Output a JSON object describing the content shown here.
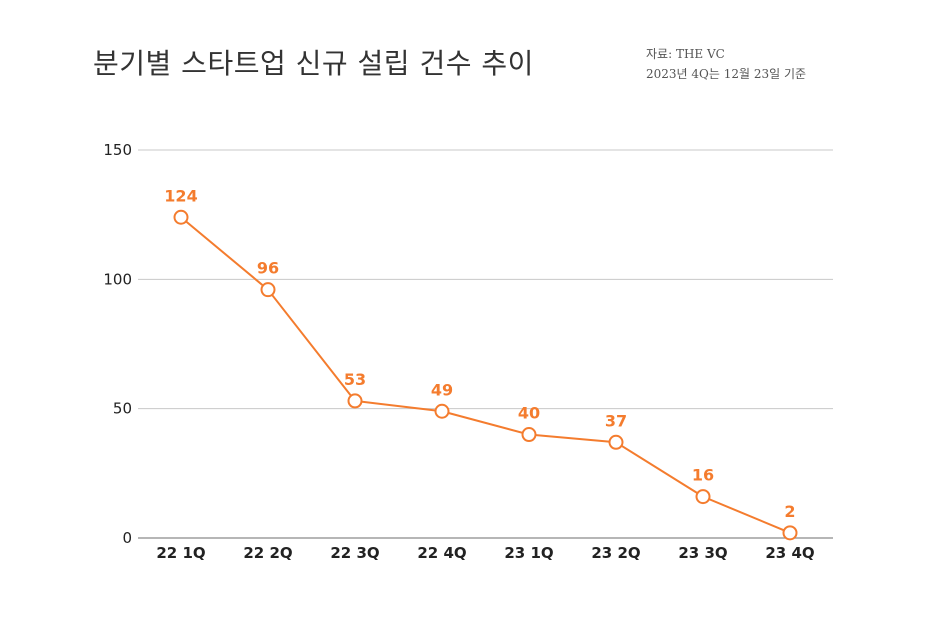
{
  "chart_data": {
    "type": "line",
    "title": "분기별 스타트업 신규 설립 건수 추이",
    "source_line1": "자료: THE VC",
    "source_line2": "2023년 4Q는 12월 23일 기준",
    "categories": [
      "22 1Q",
      "22 2Q",
      "22 3Q",
      "22 4Q",
      "23 1Q",
      "23 2Q",
      "23 3Q",
      "23 4Q"
    ],
    "series": [
      {
        "name": "신규 설립 건수",
        "values": [
          124,
          96,
          53,
          49,
          40,
          37,
          16,
          2
        ],
        "color": "#F47C2E"
      }
    ],
    "yticks": [
      "150",
      "100",
      "50",
      "0"
    ],
    "ylim": [
      0,
      150
    ],
    "grid": true,
    "xlabel": "",
    "ylabel": ""
  }
}
